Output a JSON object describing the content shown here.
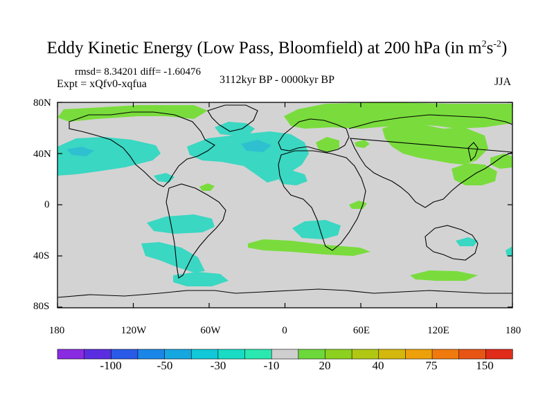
{
  "title": {
    "main": "Eddy Kinetic Energy (Low Pass, Bloomfield) at 200 hPa (in m",
    "sup1": "2",
    "mid": "s",
    "sup2": "-2",
    "end": ")"
  },
  "stats": "rmsd= 8.34201 diff= -1.60476",
  "expt": "Expt = xQfv0-xqfua",
  "period": "3112kyr BP - 0000kyr BP",
  "season": "JJA",
  "lat_labels": [
    "80N",
    "40N",
    "0",
    "40S",
    "80S"
  ],
  "lon_labels": [
    "180",
    "120W",
    "60W",
    "0",
    "60E",
    "120E",
    "180"
  ],
  "colorbar": {
    "labels": [
      "-100",
      "-50",
      "-30",
      "-10",
      "20",
      "40",
      "75",
      "150"
    ],
    "colors": [
      "#8a2be2",
      "#5a2ee0",
      "#2a5ae8",
      "#1a86e8",
      "#16a6e0",
      "#10c8d8",
      "#18dcc4",
      "#2ae8b0",
      "#cfcfcf",
      "#6cd83a",
      "#8cd020",
      "#b0c814",
      "#d4b80c",
      "#eea00a",
      "#f07a0e",
      "#e85414",
      "#e02c18"
    ]
  },
  "colors": {
    "land_background": "#d3d3d3",
    "positive": "#79dc3c",
    "negative": "#3ad7c2",
    "negative_strong": "#2ec0d0"
  }
}
